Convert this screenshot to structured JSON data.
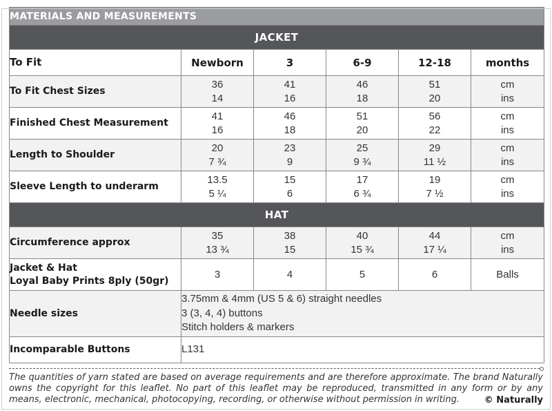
{
  "header": {
    "title": "MATERIALS AND MEASUREMENTS"
  },
  "units": {
    "cm": "cm",
    "ins": "ins"
  },
  "jacket": {
    "section_label": "JACKET",
    "size_row": {
      "label": "To Fit",
      "sizes": [
        "Newborn",
        "3",
        "6-9",
        "12-18"
      ],
      "unit": "months"
    },
    "rows": [
      {
        "label": "To Fit Chest Sizes",
        "cm": [
          "36",
          "41",
          "46",
          "51"
        ],
        "ins": [
          "14",
          "16",
          "18",
          "20"
        ]
      },
      {
        "label": "Finished Chest Measurement",
        "cm": [
          "41",
          "46",
          "51",
          "56"
        ],
        "ins": [
          "16",
          "18",
          "20",
          "22"
        ]
      },
      {
        "label": "Length to Shoulder",
        "cm": [
          "20",
          "23",
          "25",
          "29"
        ],
        "ins": [
          "7 ¾",
          "9",
          "9 ¾",
          "11 ½"
        ]
      },
      {
        "label": "Sleeve Length to underarm",
        "cm": [
          "13.5",
          "15",
          "17",
          "19"
        ],
        "ins": [
          "5 ¼",
          "6",
          "6 ¾",
          "7 ½"
        ]
      }
    ]
  },
  "hat": {
    "section_label": "HAT",
    "rows": [
      {
        "label": "Circumference approx",
        "cm": [
          "35",
          "38",
          "40",
          "44"
        ],
        "ins": [
          "13 ¾",
          "15",
          "15 ¾",
          "17 ¼"
        ]
      }
    ]
  },
  "materials": {
    "yarn_row": {
      "label_line1": "Jacket & Hat",
      "label_line2": "Loyal Baby Prints 8ply (50gr)",
      "values": [
        "3",
        "4",
        "5",
        "6"
      ],
      "unit": "Balls"
    },
    "needle_row": {
      "label": "Needle sizes",
      "lines": [
        "3.75mm & 4mm (US 5 & 6) straight needles",
        "3 (3, 4, 4) buttons",
        "Stitch holders & markers"
      ]
    },
    "buttons_row": {
      "label": "Incomparable Buttons",
      "value": "L131"
    }
  },
  "footer": {
    "text": "The quantities of yarn stated are based on average requirements and are therefore approximate. The brand Naturally owns the copyright for this leaflet. No part of this leaflet may be reproduced, transmitted in any form or by any means, electronic, mechanical, photocopying, recording, or otherwise without permission in writing.",
    "copyright": "© Naturally"
  },
  "colors": {
    "title_bar_bg": "#9b9c9f",
    "section_bar_bg": "#55565a",
    "alt_row_bg": "#f2f2f2",
    "cell_border": "#868686",
    "header_text": "#ffffff",
    "body_text": "#333333"
  }
}
